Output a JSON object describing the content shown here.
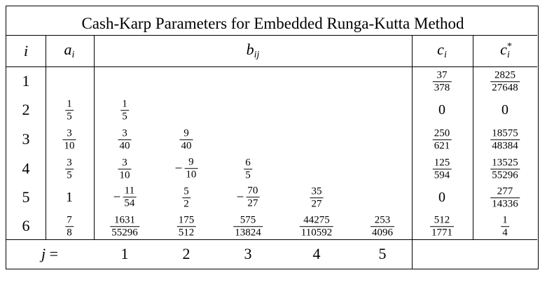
{
  "title": "Cash-Karp Parameters for Embedded Runga-Kutta Method",
  "headers": {
    "i": "i",
    "a_base": "a",
    "a_sub": "i",
    "b_base": "b",
    "b_sub": "ij",
    "c_base": "c",
    "c_sub": "i",
    "cs_base": "c",
    "cs_sub": "i",
    "cs_sup": "*"
  },
  "rows": [
    {
      "i": "1",
      "a": null,
      "b": [
        null,
        null,
        null,
        null,
        null
      ],
      "c": {
        "n": "37",
        "d": "378"
      },
      "cs": {
        "n": "2825",
        "d": "27648"
      }
    },
    {
      "i": "2",
      "a": {
        "n": "1",
        "d": "5"
      },
      "b": [
        {
          "n": "1",
          "d": "5"
        },
        null,
        null,
        null,
        null
      ],
      "c": {
        "v": "0"
      },
      "cs": {
        "v": "0"
      }
    },
    {
      "i": "3",
      "a": {
        "n": "3",
        "d": "10"
      },
      "b": [
        {
          "n": "3",
          "d": "40"
        },
        {
          "n": "9",
          "d": "40"
        },
        null,
        null,
        null
      ],
      "c": {
        "n": "250",
        "d": "621"
      },
      "cs": {
        "n": "18575",
        "d": "48384"
      }
    },
    {
      "i": "4",
      "a": {
        "n": "3",
        "d": "5"
      },
      "b": [
        {
          "n": "3",
          "d": "10"
        },
        {
          "neg": true,
          "n": "9",
          "d": "10"
        },
        {
          "n": "6",
          "d": "5"
        },
        null,
        null
      ],
      "c": {
        "n": "125",
        "d": "594"
      },
      "cs": {
        "n": "13525",
        "d": "55296"
      }
    },
    {
      "i": "5",
      "a": {
        "v": "1"
      },
      "b": [
        {
          "neg": true,
          "n": "11",
          "d": "54"
        },
        {
          "n": "5",
          "d": "2"
        },
        {
          "neg": true,
          "n": "70",
          "d": "27"
        },
        {
          "n": "35",
          "d": "27"
        },
        null
      ],
      "c": {
        "v": "0"
      },
      "cs": {
        "n": "277",
        "d": "14336"
      }
    },
    {
      "i": "6",
      "a": {
        "n": "7",
        "d": "8"
      },
      "b": [
        {
          "n": "1631",
          "d": "55296"
        },
        {
          "n": "175",
          "d": "512"
        },
        {
          "n": "575",
          "d": "13824"
        },
        {
          "n": "44275",
          "d": "110592"
        },
        {
          "n": "253",
          "d": "4096"
        }
      ],
      "c": {
        "n": "512",
        "d": "1771"
      },
      "cs": {
        "n": "1",
        "d": "4"
      }
    }
  ],
  "footer": {
    "j_label": "j =",
    "j_values": [
      "1",
      "2",
      "3",
      "4",
      "5"
    ]
  }
}
